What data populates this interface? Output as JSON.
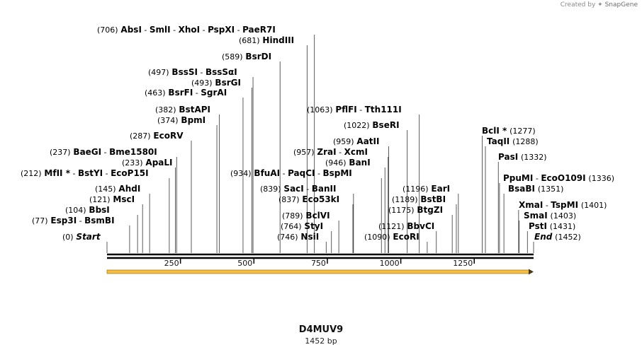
{
  "credit": {
    "prefix": "Created by",
    "brand": "SnapGene"
  },
  "title": "D4MUV9",
  "subtitle": "1452 bp",
  "map": {
    "length": 1452,
    "ticks": [
      {
        "value": 250,
        "label": "250"
      },
      {
        "value": 500,
        "label": "500"
      },
      {
        "value": 750,
        "label": "750"
      },
      {
        "value": 1000,
        "label": "1000"
      },
      {
        "value": 1250,
        "label": "1250"
      }
    ],
    "orf": {
      "start": 0,
      "end": 1452,
      "direction": "forward",
      "color": "#f5bd42"
    },
    "sites": [
      {
        "pos": 706,
        "names": [
          "AbsI",
          "SmlI",
          "XhoI",
          "PspXI",
          "PaeR7I"
        ],
        "coord": "(706)"
      },
      {
        "pos": 681,
        "names": [
          "HindIII"
        ],
        "coord": "(681)"
      },
      {
        "pos": 589,
        "names": [
          "BsrDI"
        ],
        "coord": "(589)"
      },
      {
        "pos": 497,
        "names": [
          "BssSI",
          "BssSαI"
        ],
        "coord": "(497)"
      },
      {
        "pos": 493,
        "names": [
          "BsrGI"
        ],
        "coord": "(493)"
      },
      {
        "pos": 463,
        "names": [
          "BsrFI",
          "SgrAI"
        ],
        "coord": "(463)"
      },
      {
        "pos": 382,
        "names": [
          "BstAPI"
        ],
        "coord": "(382)"
      },
      {
        "pos": 374,
        "names": [
          "BpmI"
        ],
        "coord": "(374)"
      },
      {
        "pos": 287,
        "names": [
          "EcoRV"
        ],
        "coord": "(287)"
      },
      {
        "pos": 237,
        "names": [
          "BaeGI",
          "Bme1580I"
        ],
        "coord": "(237)"
      },
      {
        "pos": 233,
        "names": [
          "ApaLI"
        ],
        "coord": "(233)"
      },
      {
        "pos": 212,
        "names": [
          "MfII *",
          "BstYI",
          "EcoP15I"
        ],
        "coord": "(212)"
      },
      {
        "pos": 145,
        "names": [
          "AhdI"
        ],
        "coord": "(145)"
      },
      {
        "pos": 121,
        "names": [
          "MscI"
        ],
        "coord": "(121)"
      },
      {
        "pos": 104,
        "names": [
          "BbsI"
        ],
        "coord": "(104)"
      },
      {
        "pos": 77,
        "names": [
          "Esp3I",
          "BsmBI"
        ],
        "coord": "(77)"
      },
      {
        "pos": 0,
        "names": [
          "Start"
        ],
        "coord": "(0)",
        "italic": true
      },
      {
        "pos": 1063,
        "names": [
          "PflFI",
          "Tth111I"
        ],
        "coord": "(1063)"
      },
      {
        "pos": 1022,
        "names": [
          "BseRI"
        ],
        "coord": "(1022)"
      },
      {
        "pos": 959,
        "names": [
          "AatII"
        ],
        "coord": "(959)"
      },
      {
        "pos": 957,
        "names": [
          "ZraI",
          "XcmI"
        ],
        "coord": "(957)"
      },
      {
        "pos": 946,
        "names": [
          "BanI"
        ],
        "coord": "(946)"
      },
      {
        "pos": 934,
        "names": [
          "BfuAI",
          "PaqCI",
          "BspMI"
        ],
        "coord": "(934)"
      },
      {
        "pos": 839,
        "names": [
          "SacI",
          "BanII"
        ],
        "coord": "(839)"
      },
      {
        "pos": 837,
        "names": [
          "Eco53kI"
        ],
        "coord": "(837)"
      },
      {
        "pos": 789,
        "names": [
          "BclVI"
        ],
        "coord": "(789)"
      },
      {
        "pos": 764,
        "names": [
          "StyI"
        ],
        "coord": "(764)"
      },
      {
        "pos": 746,
        "names": [
          "NsiI"
        ],
        "coord": "(746)"
      },
      {
        "pos": 1196,
        "names": [
          "EarI"
        ],
        "coord": "(1196)"
      },
      {
        "pos": 1189,
        "names": [
          "BstBI"
        ],
        "coord": "(1189)"
      },
      {
        "pos": 1175,
        "names": [
          "BtgZI"
        ],
        "coord": "(1175)"
      },
      {
        "pos": 1121,
        "names": [
          "BbvCI"
        ],
        "coord": "(1121)"
      },
      {
        "pos": 1090,
        "names": [
          "EcoRI"
        ],
        "coord": "(1090)"
      },
      {
        "pos": 1277,
        "names": [
          "BclI *"
        ],
        "coord": "(1277)"
      },
      {
        "pos": 1288,
        "names": [
          "TaqII"
        ],
        "coord": "(1288)"
      },
      {
        "pos": 1332,
        "names": [
          "PasI"
        ],
        "coord": "(1332)"
      },
      {
        "pos": 1336,
        "names": [
          "PpuMI",
          "EcoO109I"
        ],
        "coord": "(1336)"
      },
      {
        "pos": 1351,
        "names": [
          "BsaBI"
        ],
        "coord": "(1351)"
      },
      {
        "pos": 1401,
        "names": [
          "XmaI",
          "TspMI"
        ],
        "coord": "(1401)"
      },
      {
        "pos": 1403,
        "names": [
          "SmaI"
        ],
        "coord": "(1403)"
      },
      {
        "pos": 1431,
        "names": [
          "PstI"
        ],
        "coord": "(1431)"
      },
      {
        "pos": 1452,
        "names": [
          "End"
        ],
        "coord": "(1452)",
        "italic": true
      }
    ]
  }
}
